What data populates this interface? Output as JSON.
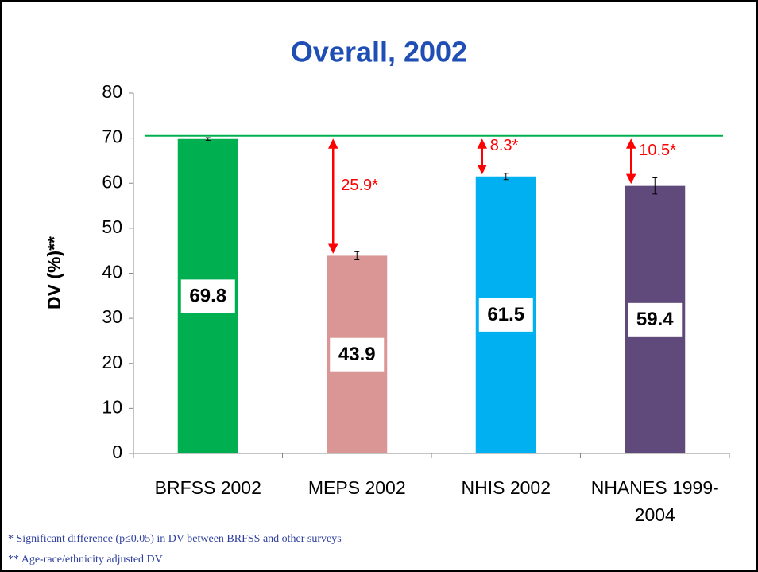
{
  "chart_data": {
    "type": "bar",
    "title": "Overall, 2002",
    "y_label": "DV (%)**",
    "categories": [
      "BRFSS 2002",
      "MEPS 2002",
      "NHIS 2002",
      "NHANES 1999-2004"
    ],
    "values": [
      69.8,
      43.9,
      61.5,
      59.4
    ],
    "errors": [
      0.3,
      0.9,
      0.7,
      1.8
    ],
    "colors": [
      "#00b050",
      "#d99694",
      "#00b0f0",
      "#604a7b"
    ],
    "ylim": [
      0,
      80
    ],
    "yticks": [
      0,
      10,
      20,
      30,
      40,
      50,
      60,
      70,
      80
    ],
    "reference_line": {
      "value": 70.5,
      "color": "#00b050"
    },
    "difference_labels": [
      null,
      "25.9*",
      "8.3*",
      "10.5*"
    ],
    "difference_color": "#ff0000",
    "footnotes": [
      "* Significant difference (p≤0.05) in DV between BRFSS and other surveys",
      "** Age-race/ethnicity adjusted DV"
    ]
  }
}
